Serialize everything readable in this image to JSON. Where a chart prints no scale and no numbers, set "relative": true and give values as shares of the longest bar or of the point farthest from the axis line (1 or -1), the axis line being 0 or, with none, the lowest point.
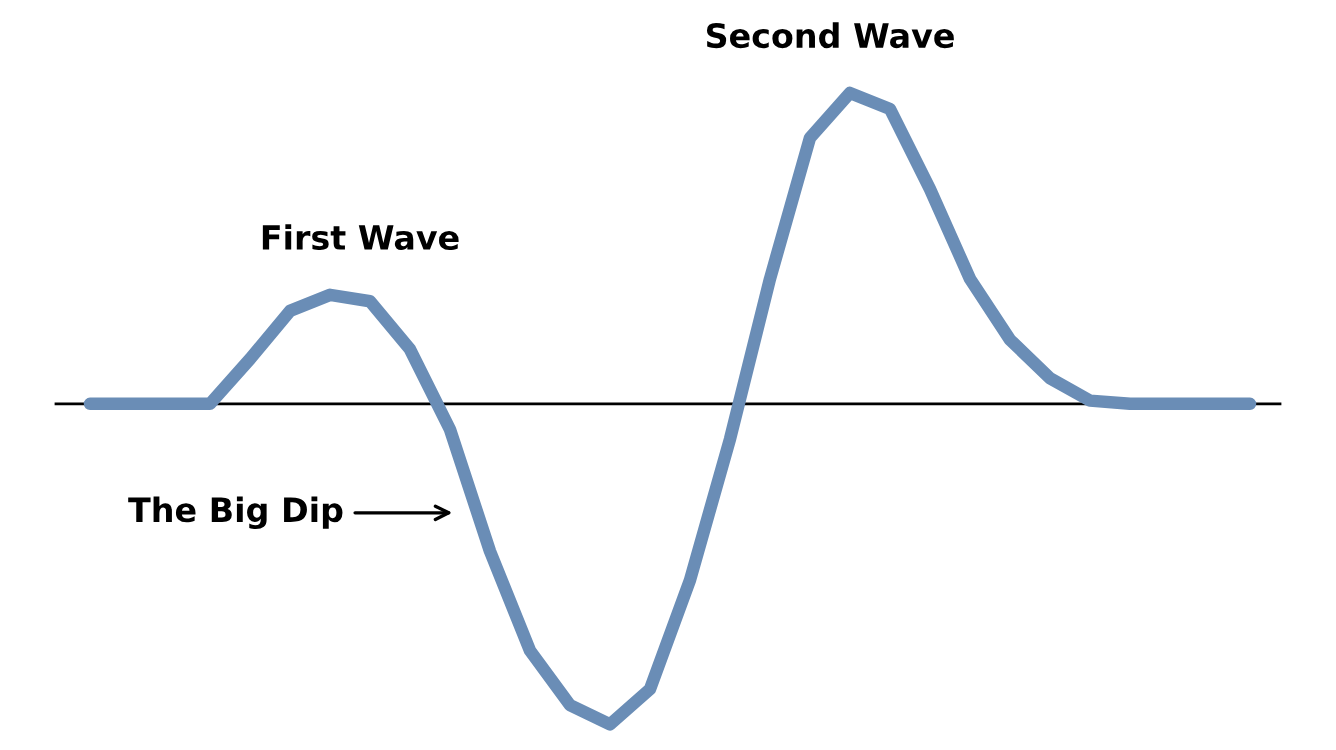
{
  "chart_data": {
    "type": "line",
    "relative": true,
    "categories": [
      null,
      null,
      null,
      null,
      null,
      null,
      null,
      null,
      null,
      null,
      null,
      null,
      null,
      null,
      null,
      null,
      null,
      null,
      null,
      null,
      null,
      null,
      null,
      null,
      null,
      null,
      null,
      null,
      null,
      null
    ],
    "series": [
      {
        "color": "#6a8db6",
        "values": [
          0,
          0,
          0,
          0,
          0.14,
          0.29,
          0.34,
          0.32,
          0.17,
          -0.08,
          -0.46,
          -0.77,
          -0.94,
          -1,
          -0.89,
          -0.55,
          -0.11,
          0.39,
          0.83,
          0.97,
          0.92,
          0.67,
          0.39,
          0.2,
          0.08,
          0.01,
          0,
          0,
          0,
          0
        ]
      }
    ],
    "annotations": [
      "First Wave",
      "Second Wave",
      "The Big Dip"
    ],
    "marker": "none",
    "line_style": "solid",
    "legend": false
  }
}
